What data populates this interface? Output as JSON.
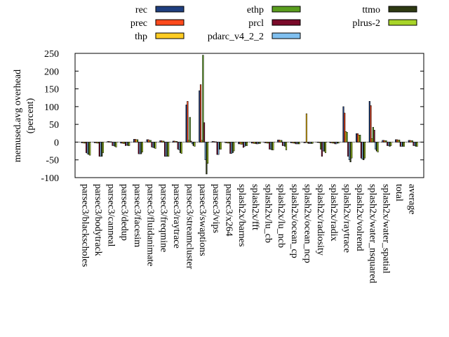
{
  "chart_data": {
    "type": "bar",
    "title": "",
    "xlabel": "",
    "ylabel": "memused.avg overhead (percent)",
    "ylabel_lines": [
      "memused.avg overhead",
      "(percent)"
    ],
    "ylim": [
      -100,
      250
    ],
    "yticks": [
      -100,
      -50,
      0,
      50,
      100,
      150,
      200,
      250
    ],
    "grid": false,
    "legend_position": "top",
    "categories": [
      "parsec3/blackscholes",
      "parsec3/bodytrack",
      "parsec3/canneal",
      "parsec3/dedup",
      "parsec3/facesim",
      "parsec3/fluidanimate",
      "parsec3/freqmine",
      "parsec3/raytrace",
      "parsec3/streamcluster",
      "parsec3/swaptions",
      "parsec3/vips",
      "parsec3/x264",
      "splash2x/barnes",
      "splash2x/fft",
      "splash2x/lu_cb",
      "splash2x/lu_ncb",
      "splash2x/ocean_cp",
      "splash2x/ocean_ncp",
      "splash2x/radiosity",
      "splash2x/radix",
      "splash2x/raytrace",
      "splash2x/volrend",
      "splash2x/water_nsquared",
      "splash2x/water_spatial",
      "total",
      "average"
    ],
    "series": [
      {
        "name": "rec",
        "color": "#1f3f7f",
        "values": [
          -2,
          -2,
          2,
          -3,
          8,
          7,
          4,
          3,
          105,
          145,
          2,
          -2,
          -5,
          -3,
          -2,
          6,
          -2,
          -2,
          -1,
          -2,
          100,
          24,
          115,
          5,
          7,
          5
        ]
      },
      {
        "name": "prec",
        "color": "#ff4a1c",
        "values": [
          -2,
          -2,
          2,
          -3,
          8,
          7,
          4,
          3,
          115,
          162,
          2,
          -2,
          -5,
          -3,
          -2,
          6,
          -2,
          -2,
          -1,
          -2,
          82,
          24,
          103,
          5,
          7,
          5
        ]
      },
      {
        "name": "thp",
        "color": "#ffcc22",
        "values": [
          -3,
          -3,
          1,
          -4,
          7,
          5,
          3,
          2,
          5,
          5,
          1,
          -3,
          -6,
          -4,
          -3,
          5,
          -3,
          80,
          -2,
          -3,
          30,
          20,
          10,
          4,
          6,
          4
        ]
      },
      {
        "name": "ethp",
        "color": "#5a9e1e",
        "values": [
          -3,
          -3,
          1,
          -4,
          7,
          5,
          3,
          2,
          70,
          245,
          1,
          -3,
          -6,
          -4,
          -3,
          5,
          -3,
          -3,
          -20,
          -3,
          28,
          20,
          42,
          4,
          6,
          4
        ]
      },
      {
        "name": "prcl",
        "color": "#7a0a2a",
        "values": [
          -30,
          -40,
          -10,
          -10,
          -33,
          -14,
          -40,
          -20,
          3,
          55,
          -35,
          -32,
          -15,
          -5,
          -20,
          -10,
          -5,
          -4,
          -40,
          -5,
          -40,
          -45,
          34,
          -10,
          -12,
          -10
        ]
      },
      {
        "name": "pdarc_v4_2_2",
        "color": "#80c0f0",
        "values": [
          -33,
          -40,
          -10,
          -8,
          -33,
          -15,
          -40,
          -22,
          -5,
          -50,
          -35,
          -32,
          -12,
          -5,
          -20,
          -10,
          -5,
          -4,
          -25,
          -5,
          -50,
          -48,
          -20,
          -10,
          -12,
          -10
        ]
      },
      {
        "name": "ttmo",
        "color": "#2e3a12",
        "values": [
          -35,
          -40,
          -12,
          -10,
          -33,
          -16,
          -40,
          -30,
          -10,
          -90,
          -20,
          -30,
          -10,
          -4,
          -22,
          -12,
          -5,
          -4,
          -26,
          -3,
          -56,
          -50,
          -25,
          -12,
          -12,
          -12
        ]
      },
      {
        "name": "plrus-2",
        "color": "#a8d428",
        "values": [
          -37,
          -30,
          -14,
          -10,
          -28,
          -18,
          -40,
          -32,
          -12,
          -60,
          -20,
          -25,
          -10,
          -4,
          -22,
          -22,
          -5,
          -4,
          -30,
          -3,
          -45,
          -45,
          -28,
          -10,
          -12,
          -12
        ]
      }
    ]
  }
}
